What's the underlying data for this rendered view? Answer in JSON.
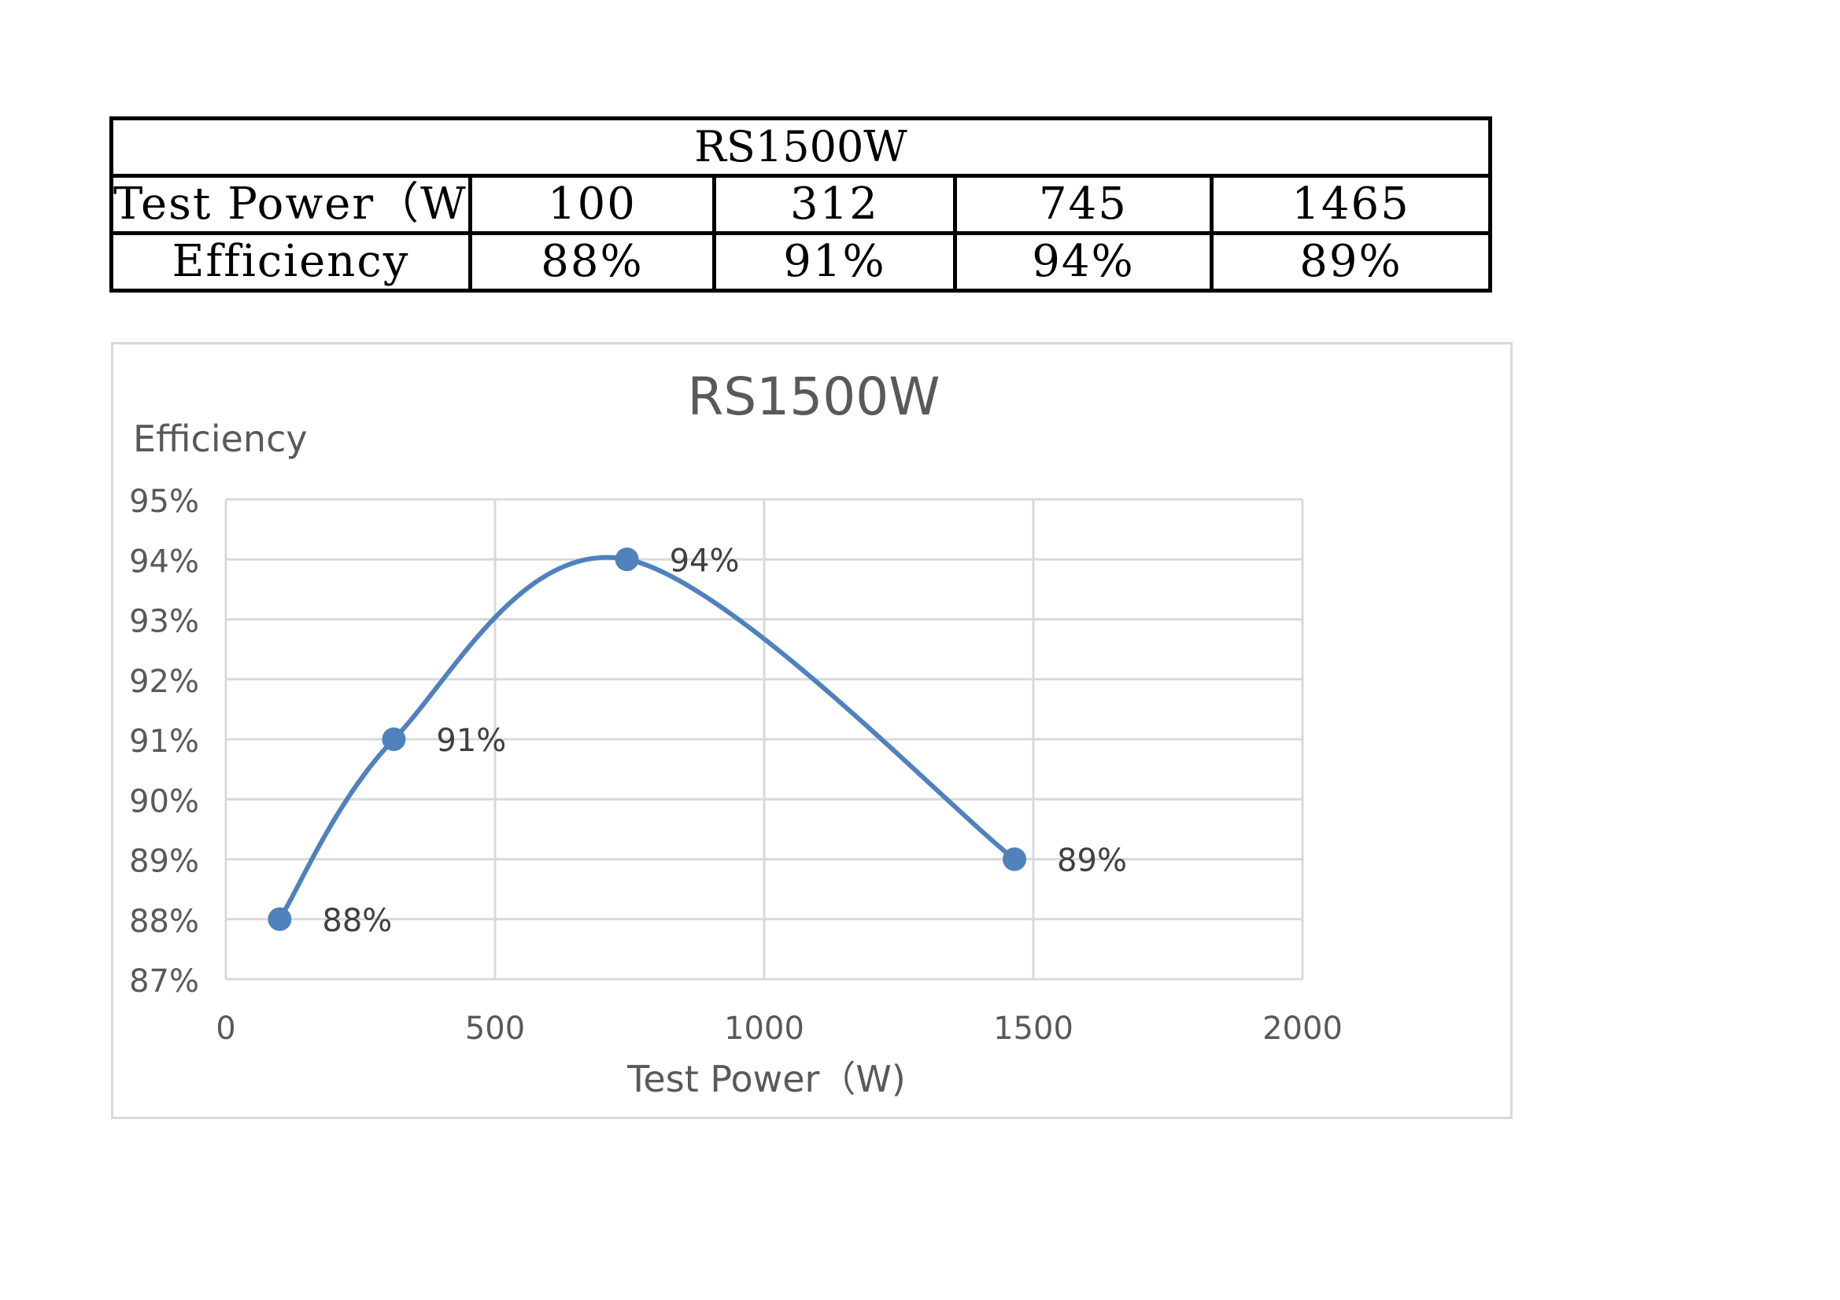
{
  "table": {
    "title": "RS1500W",
    "row_labels": [
      "Test Power（W)",
      "Efficiency"
    ],
    "power_values": [
      "100",
      "312",
      "745",
      "1465"
    ],
    "efficiency_values": [
      "88%",
      "91%",
      "94%",
      "89%"
    ]
  },
  "chart_data": {
    "type": "line",
    "title": "RS1500W",
    "xlabel": "Test Power（W)",
    "ylabel": "Efficiency",
    "x": [
      100,
      312,
      745,
      1465
    ],
    "series": [
      {
        "values": [
          88,
          91,
          94,
          89
        ],
        "labels": [
          "88%",
          "91%",
          "94%",
          "89%"
        ]
      }
    ],
    "xlim": [
      0,
      2000
    ],
    "ylim": [
      87,
      95
    ],
    "x_ticks": [
      0,
      500,
      1000,
      1500,
      2000
    ],
    "x_tick_labels": [
      "0",
      "500",
      "1000",
      "1500",
      "2000"
    ],
    "y_ticks": [
      87,
      88,
      89,
      90,
      91,
      92,
      93,
      94,
      95
    ],
    "y_tick_labels": [
      "87%",
      "88%",
      "89%",
      "90%",
      "91%",
      "92%",
      "93%",
      "94%",
      "95%"
    ],
    "grid": true,
    "smooth": true,
    "legend": "none",
    "colors": {
      "line": "#4f81bd",
      "grid": "#d9d9d9",
      "text": "#595959",
      "title": "#595959"
    }
  }
}
